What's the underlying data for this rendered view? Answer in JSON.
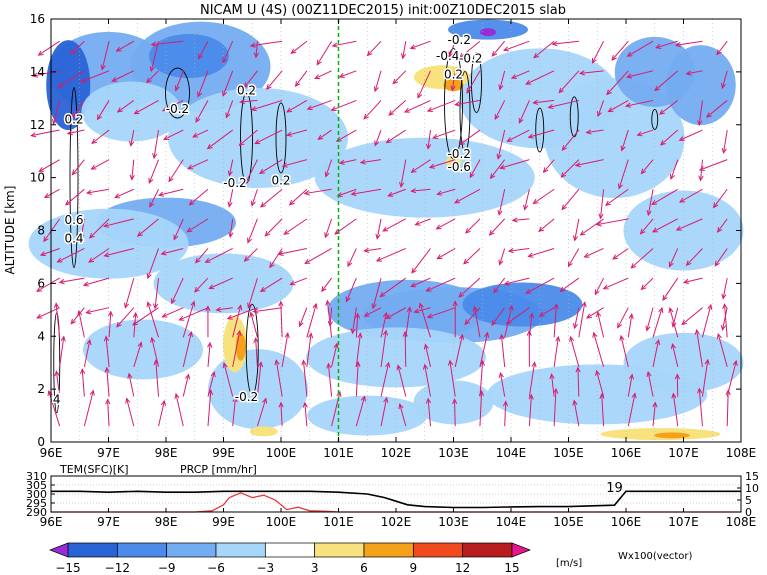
{
  "title": "NICAM U (4S) (00Z11DEC2015) init:00Z10DEC2015 slab",
  "colors": {
    "c_m15": "#9a2bd8",
    "c_m12": "#2a63d6",
    "c_m9": "#4a8bea",
    "c_m6": "#74acf1",
    "c_m3": "#a6d6fa",
    "c_0": "#ffffff",
    "c_3": "#f8e27e",
    "c_6": "#f5a21b",
    "c_9": "#f04a1e",
    "c_12": "#b81c1c",
    "c_15": "#e8168e",
    "vector": "#d81b70",
    "divider": "#00b400",
    "precip": "#e8383a"
  },
  "chart_data": [
    {
      "type": "heatmap",
      "title": "NICAM U (4S) (00Z11DEC2015) init:00Z10DEC2015 slab",
      "xlabel": "",
      "ylabel": "ALTITUDE [km]",
      "xlim": [
        96,
        108
      ],
      "ylim": [
        0,
        16
      ],
      "x_ticks": [
        "96E",
        "97E",
        "98E",
        "99E",
        "100E",
        "101E",
        "102E",
        "103E",
        "104E",
        "105E",
        "106E",
        "107E",
        "108E"
      ],
      "y_ticks": [
        "0",
        "2",
        "4",
        "6",
        "8",
        "10",
        "12",
        "14",
        "16"
      ],
      "contour_labels": [
        {
          "text": "0.2",
          "lon": 96.4,
          "alt": 12.2
        },
        {
          "text": "-0.2",
          "lon": 98.2,
          "alt": 12.6
        },
        {
          "text": "0.2",
          "lon": 99.4,
          "alt": 13.3
        },
        {
          "text": "-0.2",
          "lon": 99.2,
          "alt": 9.8
        },
        {
          "text": "0.2",
          "lon": 100.0,
          "alt": 9.9
        },
        {
          "text": "0.6",
          "lon": 96.4,
          "alt": 8.4
        },
        {
          "text": "0.4",
          "lon": 96.4,
          "alt": 7.7
        },
        {
          "text": "-0.2",
          "lon": 99.4,
          "alt": 1.7
        },
        {
          "text": "4",
          "lon": 96.1,
          "alt": 1.6
        },
        {
          "text": "-0.2",
          "lon": 103.1,
          "alt": 15.2
        },
        {
          "text": "-0.4",
          "lon": 102.9,
          "alt": 14.6
        },
        {
          "text": "-0.2",
          "lon": 103.3,
          "alt": 14.5
        },
        {
          "text": "0.2",
          "lon": 103.0,
          "alt": 13.9
        },
        {
          "text": "-0.2",
          "lon": 103.1,
          "alt": 10.9
        },
        {
          "text": "-0.6",
          "lon": 103.1,
          "alt": 10.4
        },
        {
          "text": "19",
          "lon": 105.8,
          "alt": 0
        }
      ],
      "divider_lon": 101,
      "vector_scale_label": "Wx100(vector)"
    },
    {
      "type": "line",
      "title": "",
      "series": [
        {
          "name": "TEM(SFC)[K]",
          "x": [
            96,
            96.5,
            97,
            97.5,
            98,
            98.5,
            99,
            99.5,
            100,
            100.5,
            101,
            101.5,
            101.8,
            102.0,
            102.2,
            102.5,
            103,
            103.5,
            104,
            104.5,
            105,
            105.5,
            105.8,
            106.0,
            106.5,
            107,
            107.5,
            108
          ],
          "values": [
            301.5,
            301.5,
            301,
            301.5,
            301,
            301,
            301.5,
            301.5,
            301.5,
            301.5,
            301,
            300,
            298,
            296,
            294,
            293,
            292.5,
            292.5,
            292.8,
            293,
            293,
            293.5,
            293.8,
            301.5,
            301.5,
            301.5,
            301.5,
            301.5
          ]
        },
        {
          "name": "PRCP [mm/hr]",
          "x": [
            96,
            98.5,
            98.8,
            99.0,
            99.1,
            99.3,
            99.5,
            99.7,
            99.9,
            100.1,
            100.3,
            100.5,
            100.8,
            101.0,
            102,
            104,
            106,
            108
          ],
          "values": [
            0,
            0,
            0.5,
            3,
            6,
            8,
            6,
            7,
            5,
            1,
            2,
            0.5,
            0.3,
            0,
            0,
            0,
            0,
            0
          ]
        }
      ],
      "left_axis_ticks": [
        "310",
        "305",
        "300",
        "295",
        "290"
      ],
      "right_axis_ticks": [
        "15",
        "10",
        "5",
        "0"
      ],
      "xlim": [
        96,
        108
      ],
      "ylim_left": [
        290,
        310
      ],
      "ylim_right": [
        0,
        15
      ]
    }
  ],
  "colorbar": {
    "labels": [
      "−15",
      "−12",
      "−9",
      "−6",
      "−3",
      "3",
      "6",
      "9",
      "12",
      "15"
    ],
    "unit": "[m/s]"
  }
}
